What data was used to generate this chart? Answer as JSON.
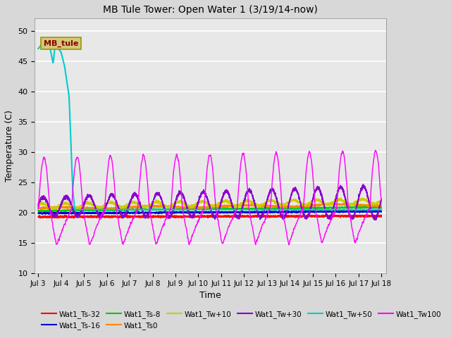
{
  "title": "MB Tule Tower: Open Water 1 (3/19/14-now)",
  "xlabel": "Time",
  "ylabel": "Temperature (C)",
  "ylim": [
    10,
    52
  ],
  "yticks": [
    10,
    15,
    20,
    25,
    30,
    35,
    40,
    45,
    50
  ],
  "xlim_start": -0.15,
  "xlim_end": 15.2,
  "xtick_labels": [
    "Jul 3",
    "Jul 4",
    "Jul 5",
    "Jul 6",
    "Jul 7",
    "Jul 8",
    "Jul 9",
    "Jul 10",
    "Jul 11",
    "Jul 12",
    "Jul 13",
    "Jul 14",
    "Jul 15",
    "Jul 16",
    "Jul 17",
    "Jul 18"
  ],
  "xtick_positions": [
    0,
    1,
    2,
    3,
    4,
    5,
    6,
    7,
    8,
    9,
    10,
    11,
    12,
    13,
    14,
    15
  ],
  "fig_bg_color": "#d8d8d8",
  "plot_bg_color": "#e8e8e8",
  "legend_label_box": "MB_tule",
  "legend_box_bg": "#d4c87a",
  "legend_box_text_color": "#8b0000",
  "grid_color": "#ffffff",
  "colors": {
    "Wat1_Ts-32": "#ff0000",
    "Wat1_Ts-16": "#0000cc",
    "Wat1_Ts-8": "#00cc00",
    "Wat1_Ts0": "#ff8800",
    "Wat1_Tw+10": "#cccc00",
    "Wat1_Tw+30": "#8800cc",
    "Wat1_Tw+50": "#00cccc",
    "Wat1_Tw100": "#ff00ff"
  }
}
